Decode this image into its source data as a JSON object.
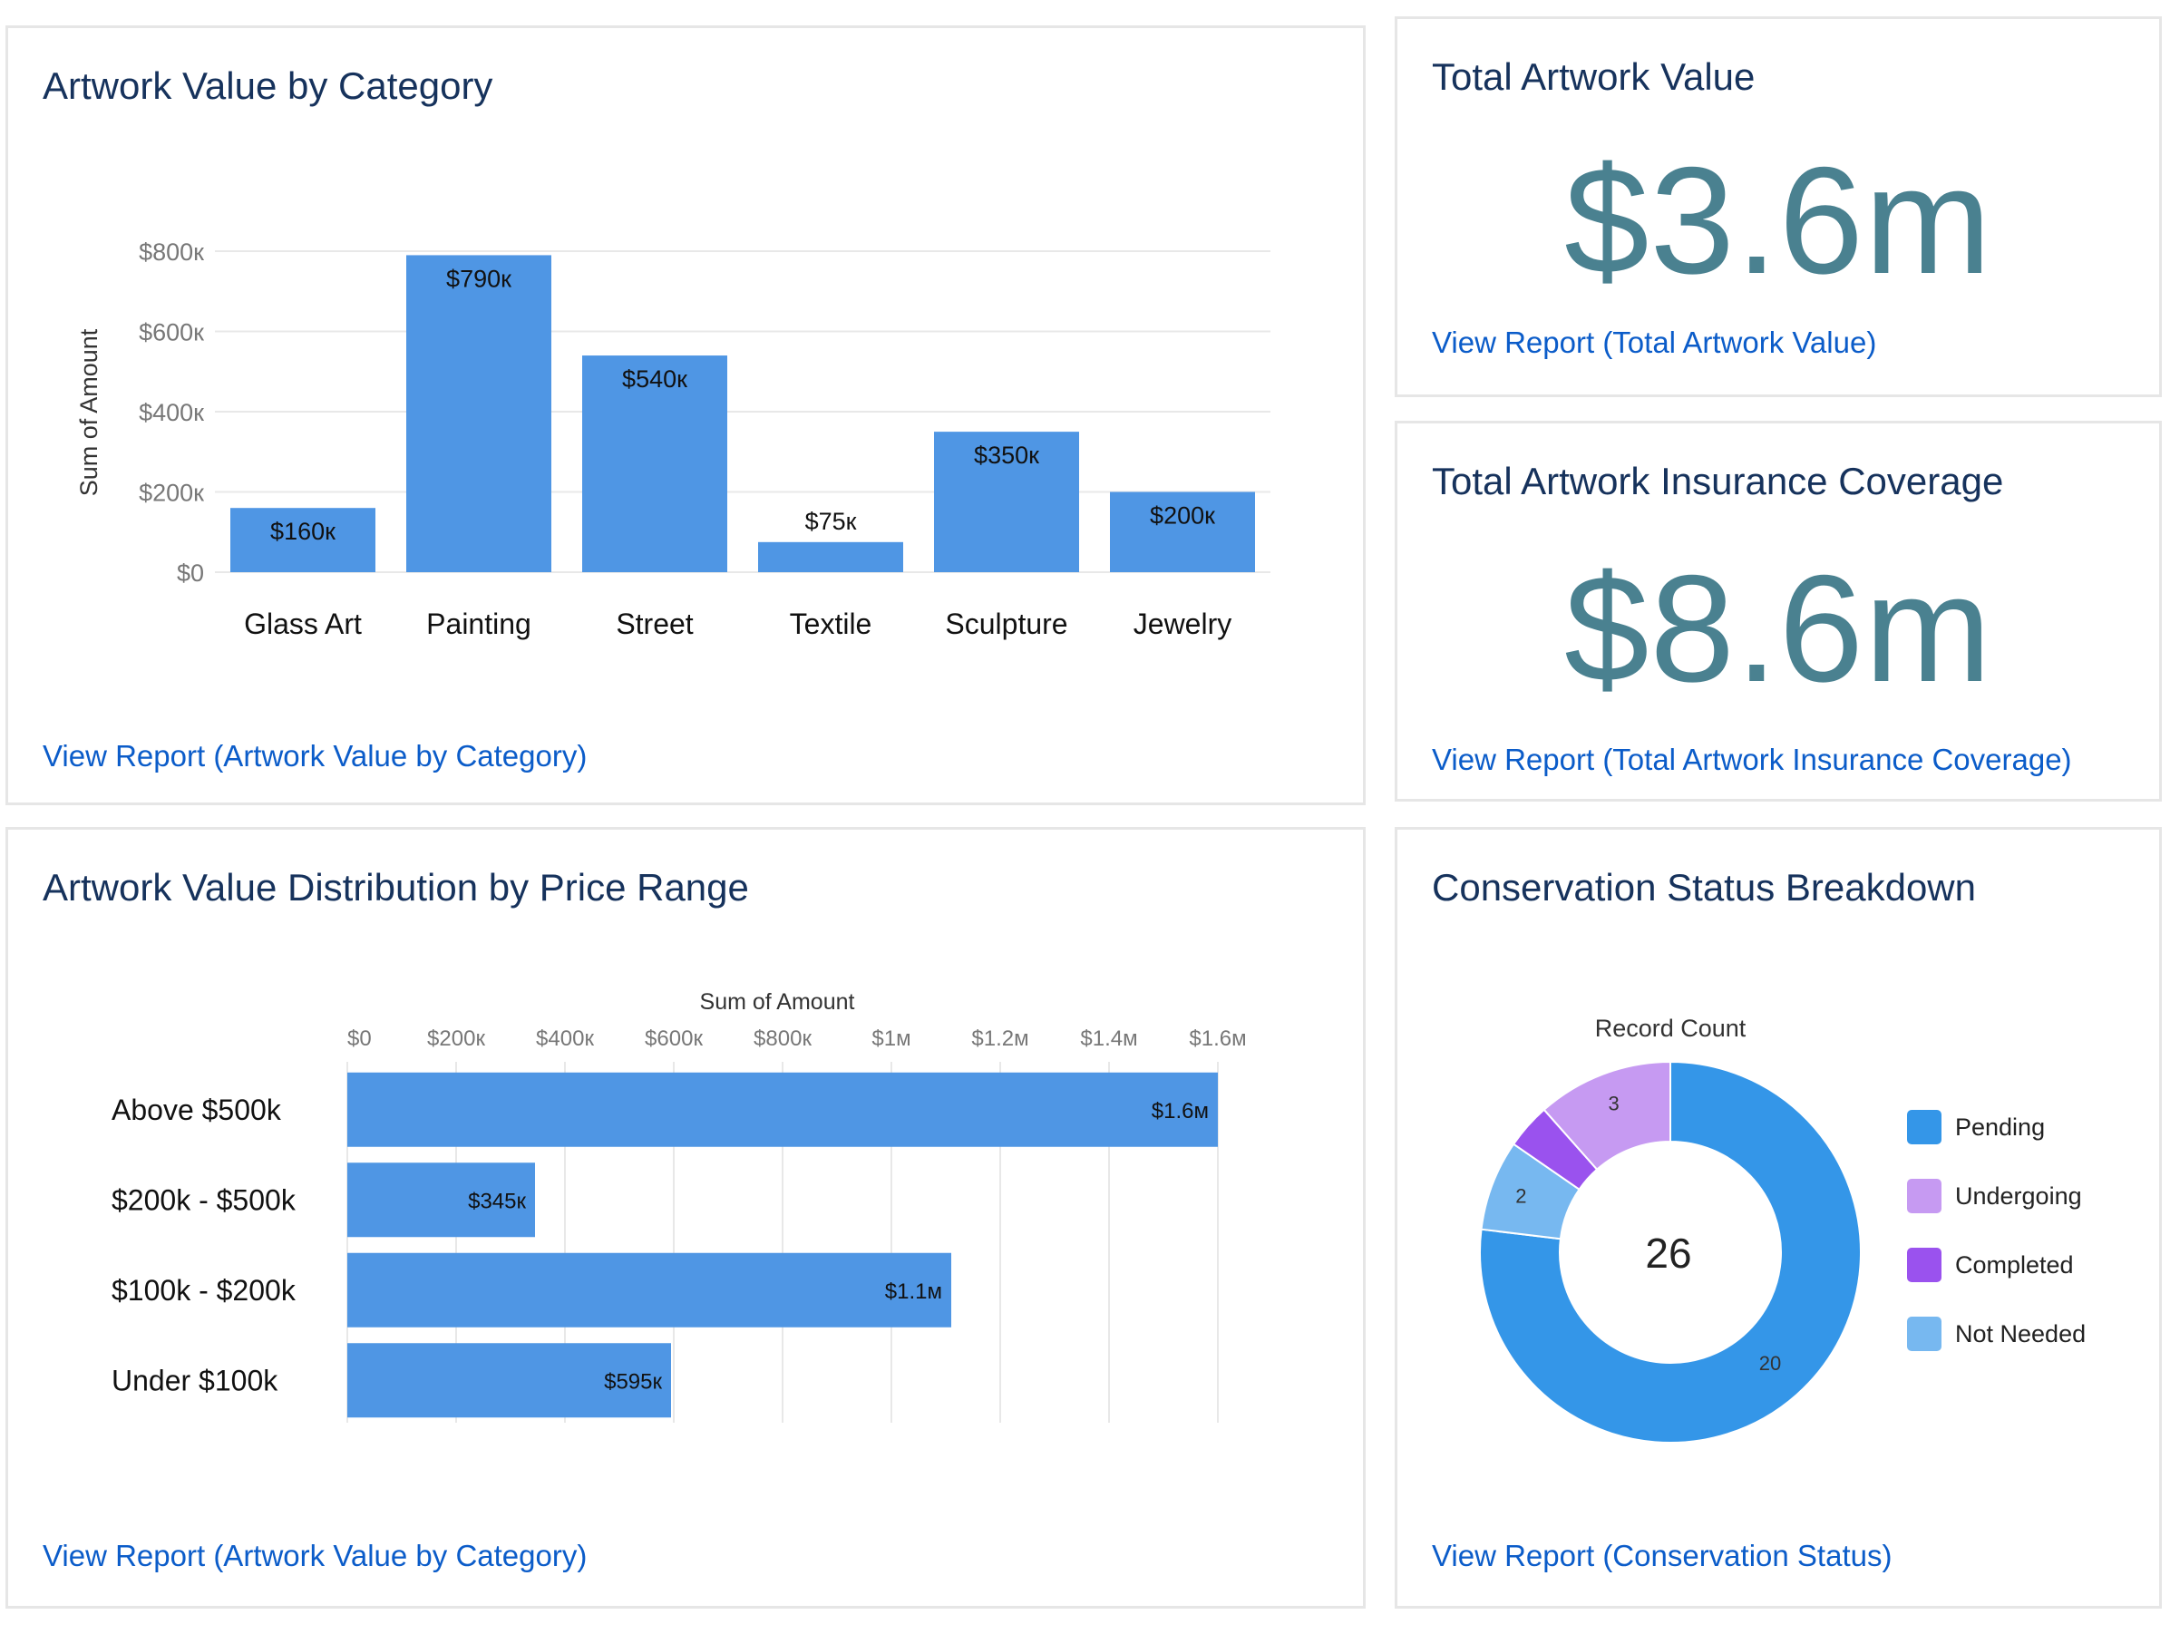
{
  "cards": {
    "category": {
      "title": "Artwork Value by Category",
      "link": "View Report (Artwork Value by Category)"
    },
    "total_value": {
      "title": "Total Artwork Value",
      "metric": "$3.6m",
      "link": "View Report (Total Artwork Value)"
    },
    "insurance": {
      "title": "Total Artwork Insurance Coverage",
      "metric": "$8.6m",
      "link": "View Report (Total Artwork Insurance Coverage)"
    },
    "distribution": {
      "title": "Artwork Value Distribution by Price Range",
      "link": "View Report (Artwork Value by Category)"
    },
    "conservation": {
      "title": "Conservation Status Breakdown",
      "link": "View Report (Conservation Status)"
    }
  },
  "colors": {
    "bar": "#4f96e4",
    "title": "#16325c",
    "link": "#0b5cc9",
    "metric": "#4a8190"
  },
  "chart_data": [
    {
      "type": "bar",
      "orientation": "vertical",
      "categories": [
        "Glass Art",
        "Painting",
        "Street",
        "Textile",
        "Sculpture",
        "Jewelry"
      ],
      "values": [
        160000,
        790000,
        540000,
        75000,
        350000,
        200000
      ],
      "data_labels": [
        "$160к",
        "$790к",
        "$540к",
        "$75к",
        "$350к",
        "$200к"
      ],
      "ylabel": "Sum of Amount",
      "ylim": [
        0,
        800000
      ],
      "yticks": [
        0,
        200000,
        400000,
        600000,
        800000
      ],
      "ytick_labels": [
        "$0",
        "$200к",
        "$400к",
        "$600к",
        "$800к"
      ],
      "grid": true
    },
    {
      "type": "bar",
      "orientation": "horizontal",
      "categories": [
        "Above $500k",
        "$200k - $500k",
        "$100k - $200k",
        "Under $100k"
      ],
      "values": [
        1600000,
        345000,
        1110000,
        595000
      ],
      "data_labels": [
        "$1.6м",
        "$345к",
        "$1.1м",
        "$595к"
      ],
      "xlabel": "Sum of Amount",
      "xlim": [
        0,
        1600000
      ],
      "xticks": [
        0,
        200000,
        400000,
        600000,
        800000,
        1000000,
        1200000,
        1400000,
        1600000
      ],
      "xtick_labels": [
        "$0",
        "$200к",
        "$400к",
        "$600к",
        "$800к",
        "$1м",
        "$1.2м",
        "$1.4м",
        "$1.6м"
      ],
      "grid": true
    },
    {
      "type": "pie",
      "donut": true,
      "title": "Record Count",
      "total": "26",
      "slices": [
        {
          "name": "Pending",
          "value": 20,
          "color": "#3496e8",
          "label": "20"
        },
        {
          "name": "Not Needed",
          "value": 2,
          "color": "#77b8f0",
          "label": "2"
        },
        {
          "name": "Completed",
          "value": 1,
          "color": "#9a52ee",
          "label": ""
        },
        {
          "name": "Undergoing",
          "value": 3,
          "color": "#c69af2",
          "label": "3"
        }
      ],
      "legend_order": [
        "Pending",
        "Undergoing",
        "Completed",
        "Not Needed"
      ],
      "legend_position": "right"
    }
  ]
}
